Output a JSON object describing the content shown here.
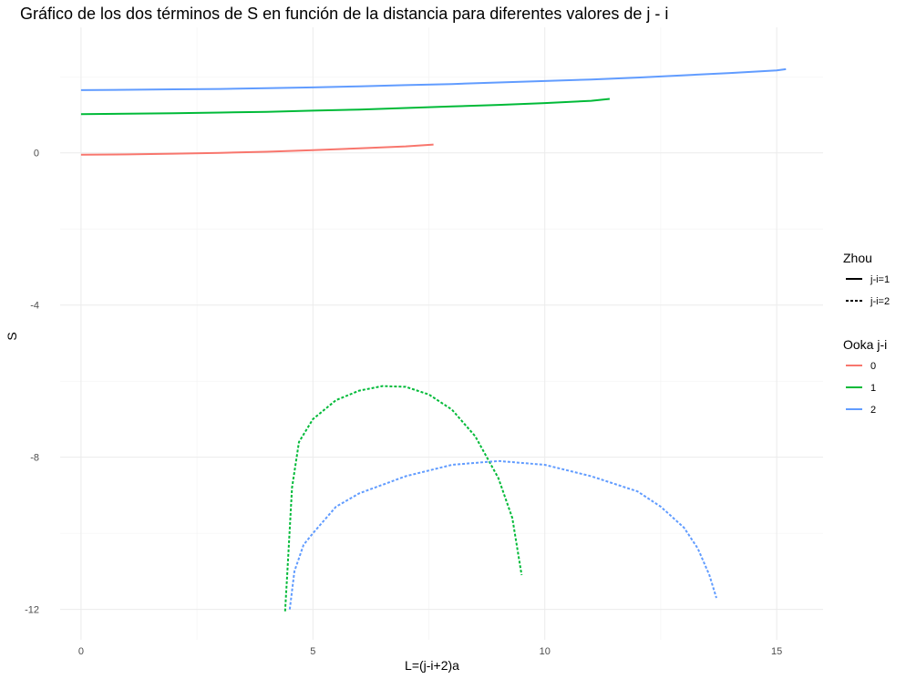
{
  "chart_data": {
    "type": "line",
    "title": "Gráfico de los dos términos de S en función de la distancia para diferentes valores de j - i",
    "xlabel": "L=(j-i+2)a",
    "ylabel": "S",
    "xlim": [
      -0.45,
      16
    ],
    "ylim": [
      -12.8,
      3.3
    ],
    "x_ticks": [
      0,
      5,
      10,
      15
    ],
    "x_tick_labels": [
      "0",
      "5",
      "10",
      "15"
    ],
    "y_ticks": [
      0,
      -4,
      -8,
      -12
    ],
    "y_tick_labels": [
      "0",
      "-4",
      "-8",
      "-12"
    ],
    "grid": true,
    "legend_position": "right",
    "legends": [
      {
        "title": "Zhou",
        "items": [
          {
            "label": "j-i=1",
            "linetype": "solid"
          },
          {
            "label": "j-i=2",
            "linetype": "dashed"
          }
        ]
      },
      {
        "title": "Ooka j-i",
        "items": [
          {
            "label": "0",
            "color": "#F8766D"
          },
          {
            "label": "1",
            "color": "#00BA38"
          },
          {
            "label": "2",
            "color": "#619CFF"
          }
        ]
      }
    ],
    "series": [
      {
        "color": "#F8766D",
        "linetype": "solid",
        "x": [
          0,
          1,
          2,
          3,
          4,
          5,
          6,
          7,
          7.6
        ],
        "y": [
          -0.05,
          -0.04,
          -0.02,
          0.0,
          0.03,
          0.07,
          0.12,
          0.17,
          0.22
        ]
      },
      {
        "color": "#00BA38",
        "linetype": "solid",
        "x": [
          0,
          1,
          2,
          3,
          4,
          5,
          6,
          7,
          8,
          9,
          10,
          11,
          11.4
        ],
        "y": [
          1.02,
          1.03,
          1.04,
          1.06,
          1.08,
          1.11,
          1.14,
          1.18,
          1.22,
          1.26,
          1.31,
          1.37,
          1.42
        ]
      },
      {
        "color": "#619CFF",
        "linetype": "solid",
        "x": [
          0,
          1,
          2,
          3,
          4,
          5,
          6,
          7,
          8,
          9,
          10,
          11,
          12,
          13,
          14,
          15,
          15.2
        ],
        "y": [
          1.65,
          1.66,
          1.67,
          1.68,
          1.7,
          1.72,
          1.75,
          1.78,
          1.81,
          1.85,
          1.89,
          1.93,
          1.98,
          2.04,
          2.1,
          2.17,
          2.2
        ]
      },
      {
        "color": "#00BA38",
        "linetype": "dashed",
        "x": [
          4.4,
          4.45,
          4.55,
          4.7,
          5.0,
          5.5,
          6.0,
          6.5,
          7.0,
          7.5,
          8.0,
          8.5,
          9.0,
          9.3,
          9.5
        ],
        "y": [
          -12.05,
          -11.0,
          -8.8,
          -7.6,
          -7.0,
          -6.5,
          -6.25,
          -6.13,
          -6.15,
          -6.35,
          -6.75,
          -7.45,
          -8.55,
          -9.6,
          -11.1
        ]
      },
      {
        "color": "#619CFF",
        "linetype": "dashed",
        "x": [
          4.5,
          4.6,
          4.8,
          5.0,
          5.5,
          6.0,
          7.0,
          8.0,
          9.0,
          10.0,
          11.0,
          12.0,
          12.5,
          13.0,
          13.3,
          13.55,
          13.7
        ],
        "y": [
          -12.0,
          -11.0,
          -10.3,
          -10.0,
          -9.3,
          -8.95,
          -8.5,
          -8.2,
          -8.1,
          -8.2,
          -8.5,
          -8.9,
          -9.3,
          -9.85,
          -10.4,
          -11.1,
          -11.7
        ]
      }
    ]
  }
}
